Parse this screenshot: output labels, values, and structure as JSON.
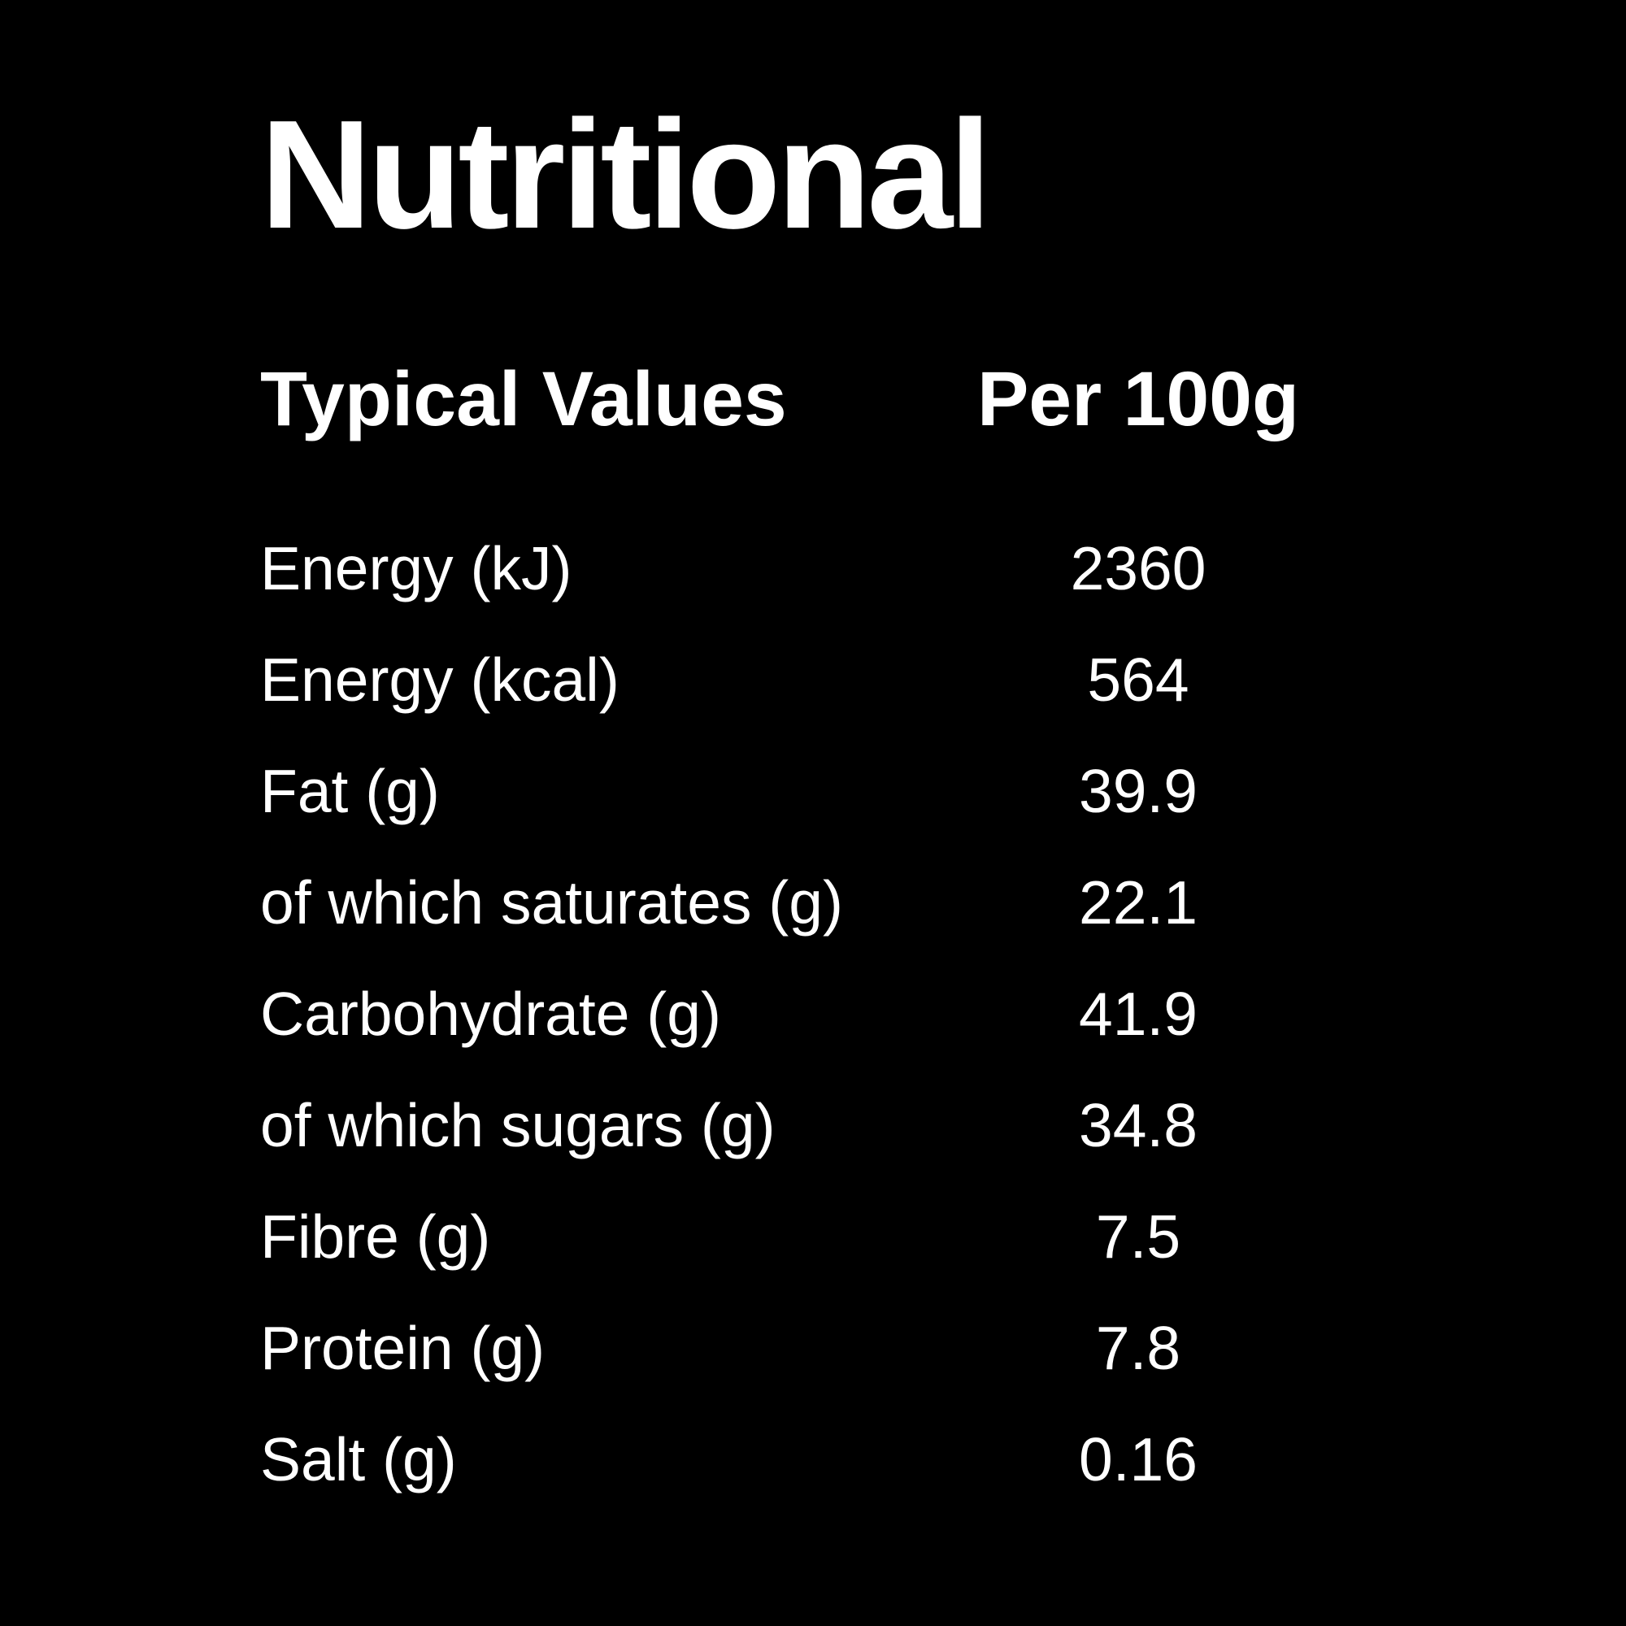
{
  "page": {
    "background_color": "#000000",
    "text_color": "#ffffff"
  },
  "title": "Nutritional",
  "table": {
    "headers": {
      "label": "Typical Values",
      "value": "Per 100g"
    },
    "rows": [
      {
        "label": "Energy (kJ)",
        "value": "2360"
      },
      {
        "label": "Energy (kcal)",
        "value": "564"
      },
      {
        "label": "Fat (g)",
        "value": "39.9"
      },
      {
        "label": "of which saturates (g)",
        "value": "22.1"
      },
      {
        "label": "Carbohydrate (g)",
        "value": "41.9"
      },
      {
        "label": "of which sugars (g)",
        "value": "34.8"
      },
      {
        "label": "Fibre (g)",
        "value": "7.5"
      },
      {
        "label": "Protein (g)",
        "value": "7.8"
      },
      {
        "label": "Salt (g)",
        "value": "0.16"
      }
    ]
  }
}
